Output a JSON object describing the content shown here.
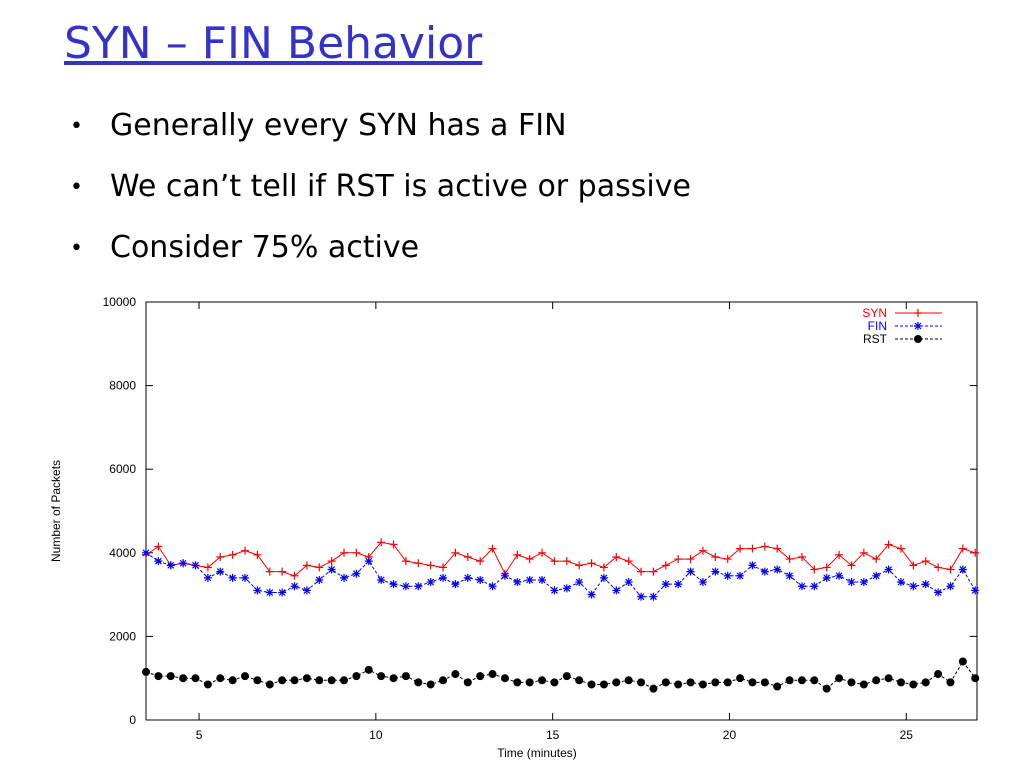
{
  "title": "SYN – FIN Behavior",
  "bullets": [
    "Generally every SYN has a FIN",
    "We can’t tell if RST is active or passive",
    "Consider 75% active"
  ],
  "chart_data": {
    "type": "line",
    "x_label": "Time (minutes)",
    "y_label": "Number of Packets",
    "x": [
      3.5,
      3.85,
      4.2,
      4.55,
      4.9,
      5.25,
      5.6,
      5.95,
      6.3,
      6.65,
      7,
      7.35,
      7.7,
      8.05,
      8.4,
      8.75,
      9.1,
      9.45,
      9.8,
      10.15,
      10.5,
      10.85,
      11.2,
      11.55,
      11.9,
      12.25,
      12.6,
      12.95,
      13.3,
      13.65,
      14,
      14.35,
      14.7,
      15.05,
      15.4,
      15.75,
      16.1,
      16.45,
      16.8,
      17.15,
      17.5,
      17.85,
      18.2,
      18.55,
      18.9,
      19.25,
      19.6,
      19.95,
      20.3,
      20.65,
      21,
      21.35,
      21.7,
      22.05,
      22.4,
      22.75,
      23.1,
      23.45,
      23.8,
      24.15,
      24.5,
      24.85,
      25.2,
      25.55,
      25.9,
      26.25,
      26.6,
      26.95
    ],
    "series": [
      {
        "name": "SYN",
        "color": "#ff0000",
        "marker": "plus",
        "dash": false,
        "values": [
          3950,
          4150,
          3700,
          3750,
          3700,
          3650,
          3900,
          3950,
          4050,
          3950,
          3550,
          3550,
          3450,
          3700,
          3650,
          3800,
          4000,
          4000,
          3900,
          4250,
          4200,
          3800,
          3750,
          3700,
          3650,
          4000,
          3900,
          3800,
          4100,
          3500,
          3950,
          3850,
          4000,
          3800,
          3800,
          3700,
          3750,
          3650,
          3900,
          3800,
          3550,
          3550,
          3700,
          3850,
          3850,
          4050,
          3900,
          3850,
          4100,
          4100,
          4150,
          4100,
          3850,
          3900,
          3600,
          3650,
          3950,
          3700,
          4000,
          3850,
          4200,
          4100,
          3700,
          3800,
          3650,
          3600,
          4100,
          4000
        ]
      },
      {
        "name": "FIN",
        "color": "#0000ff",
        "marker": "star",
        "dash": true,
        "values": [
          4000,
          3800,
          3700,
          3750,
          3700,
          3400,
          3550,
          3400,
          3400,
          3100,
          3050,
          3050,
          3200,
          3100,
          3350,
          3600,
          3400,
          3500,
          3800,
          3350,
          3250,
          3200,
          3200,
          3300,
          3400,
          3250,
          3400,
          3350,
          3200,
          3450,
          3300,
          3350,
          3350,
          3100,
          3150,
          3300,
          3000,
          3400,
          3100,
          3300,
          2950,
          2950,
          3250,
          3250,
          3550,
          3300,
          3550,
          3450,
          3450,
          3700,
          3550,
          3600,
          3450,
          3200,
          3200,
          3400,
          3450,
          3300,
          3300,
          3450,
          3600,
          3300,
          3200,
          3250,
          3050,
          3200,
          3600,
          3100
        ]
      },
      {
        "name": "RST",
        "color": "#000000",
        "marker": "circle",
        "dash": true,
        "values": [
          1150,
          1050,
          1050,
          1000,
          1000,
          850,
          1000,
          950,
          1050,
          950,
          850,
          950,
          950,
          1000,
          950,
          950,
          950,
          1050,
          1200,
          1050,
          1000,
          1050,
          900,
          850,
          950,
          1100,
          900,
          1050,
          1100,
          1000,
          900,
          900,
          950,
          900,
          1050,
          950,
          850,
          850,
          900,
          950,
          900,
          750,
          900,
          850,
          900,
          850,
          900,
          900,
          1000,
          900,
          900,
          800,
          950,
          950,
          950,
          750,
          1000,
          900,
          850,
          950,
          1000,
          900,
          850,
          900,
          1100,
          900,
          1400,
          1000
        ]
      }
    ],
    "xlim": [
      3.5,
      27
    ],
    "xticks": [
      5,
      10,
      15,
      20,
      25
    ],
    "ylim": [
      0,
      10000
    ],
    "yticks": [
      0,
      2000,
      4000,
      6000,
      8000,
      10000
    ],
    "legend": "upper right"
  }
}
